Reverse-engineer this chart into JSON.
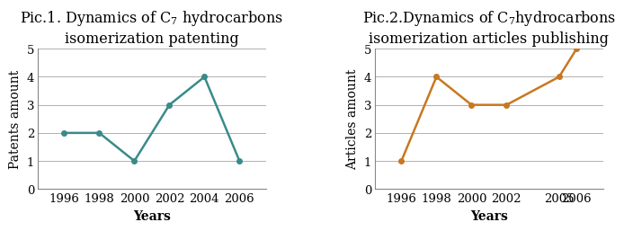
{
  "plot1": {
    "title": "Pic.1. Dynamics of C$_7$ hydrocarbons\nisomerization patenting",
    "xlabel": "Years",
    "ylabel": "Patents amount",
    "x": [
      1996,
      1998,
      2000,
      2002,
      2004,
      2006
    ],
    "y": [
      2,
      2,
      1,
      3,
      4,
      1
    ],
    "color": "#3a8a8a",
    "ylim": [
      0,
      5
    ],
    "yticks": [
      0,
      1,
      2,
      3,
      4,
      5
    ],
    "xticks": [
      1996,
      1998,
      2000,
      2002,
      2004,
      2006
    ],
    "xlim": [
      1994.5,
      2007.5
    ]
  },
  "plot2": {
    "title": "Pic.2.Dynamics of C$_7$hydrocarbons\nisomerization articles publishing",
    "xlabel": "Years",
    "ylabel": "Articles amount",
    "x": [
      1996,
      1998,
      2000,
      2002,
      2005,
      2006
    ],
    "y": [
      1,
      4,
      3,
      3,
      4,
      5
    ],
    "color": "#c87820",
    "ylim": [
      0,
      5
    ],
    "yticks": [
      0,
      1,
      2,
      3,
      4,
      5
    ],
    "xticks": [
      1996,
      1998,
      2000,
      2002,
      2005,
      2006
    ],
    "xlim": [
      1994.5,
      2007.5
    ]
  },
  "bg_color": "#ffffff",
  "grid_color": "#b0b0b0",
  "marker": "o",
  "marker_size": 4,
  "linewidth": 1.8,
  "title_fontsize": 11.5,
  "label_fontsize": 10,
  "tick_fontsize": 9.5
}
